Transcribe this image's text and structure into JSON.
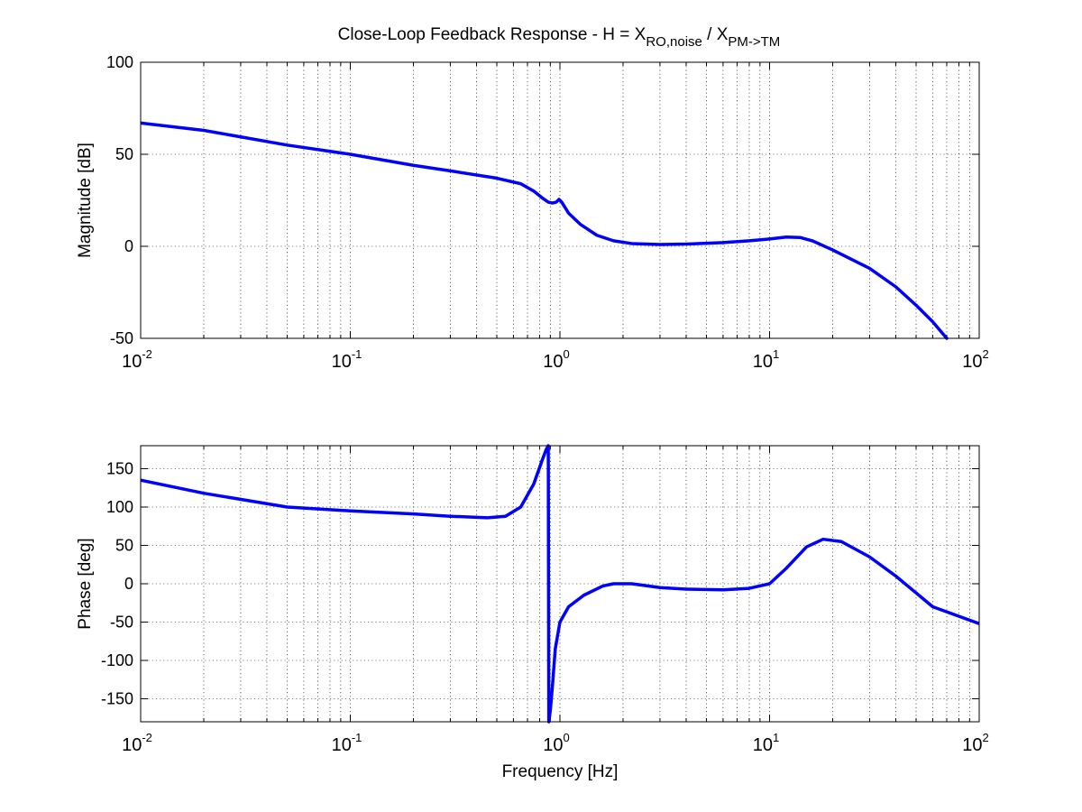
{
  "figure": {
    "title": {
      "main": "Close-Loop Feedback Response - H = X",
      "sub1": "RO,noise",
      "mid": " / X",
      "sub2": "PM->TM"
    }
  },
  "chart_data": [
    {
      "type": "line",
      "xscale": "log",
      "xlim": [
        0.01,
        100
      ],
      "ylim": [
        -50,
        100
      ],
      "grid": true,
      "xlabel": "",
      "ylabel": "Magnitude [dB]",
      "x_tick_labels": [
        {
          "base": "10",
          "exp": "-2"
        },
        {
          "base": "10",
          "exp": "-1"
        },
        {
          "base": "10",
          "exp": "0"
        },
        {
          "base": "10",
          "exp": "1"
        },
        {
          "base": "10",
          "exp": "2"
        }
      ],
      "y_ticks": [
        -50,
        0,
        50,
        100
      ],
      "y_tick_labels": [
        "-50",
        "0",
        "50",
        "100"
      ],
      "series": [
        {
          "color": "#0000ff",
          "x": [
            0.01,
            0.02,
            0.05,
            0.1,
            0.2,
            0.3,
            0.5,
            0.65,
            0.75,
            0.83,
            0.88,
            0.92,
            0.96,
            0.99,
            1.02,
            1.1,
            1.25,
            1.5,
            1.8,
            2.2,
            3,
            4,
            6,
            8,
            10,
            12,
            14,
            16,
            20,
            30,
            40,
            50,
            60,
            70
          ],
          "y": [
            67,
            63,
            55,
            50,
            44,
            41,
            37,
            34,
            30,
            26,
            24,
            23.5,
            24,
            25.5,
            24,
            18,
            12,
            6,
            3,
            1.5,
            1,
            1.2,
            2,
            3,
            4,
            5,
            4.8,
            3,
            -2,
            -12,
            -22,
            -32,
            -41,
            -50
          ]
        }
      ]
    },
    {
      "type": "line",
      "xscale": "log",
      "xlim": [
        0.01,
        100
      ],
      "ylim": [
        -180,
        180
      ],
      "grid": true,
      "xlabel": "Frequency [Hz]",
      "ylabel": "Phase [deg]",
      "x_tick_labels": [
        {
          "base": "10",
          "exp": "-2"
        },
        {
          "base": "10",
          "exp": "-1"
        },
        {
          "base": "10",
          "exp": "0"
        },
        {
          "base": "10",
          "exp": "1"
        },
        {
          "base": "10",
          "exp": "2"
        }
      ],
      "y_ticks": [
        -150,
        -100,
        -50,
        0,
        50,
        100,
        150
      ],
      "y_tick_labels": [
        "-150",
        "-100",
        "-50",
        "0",
        "50",
        "100",
        "150"
      ],
      "series": [
        {
          "color": "#0000ff",
          "x": [
            0.01,
            0.02,
            0.05,
            0.1,
            0.2,
            0.3,
            0.45,
            0.55,
            0.65,
            0.75,
            0.82,
            0.86,
            0.88,
            0.885,
            0.89,
            0.9,
            0.92,
            0.95,
            1.0,
            1.1,
            1.3,
            1.6,
            1.8,
            2.2,
            3,
            4,
            6,
            8,
            10,
            12,
            15,
            18,
            22,
            30,
            40,
            60,
            100
          ],
          "y": [
            135,
            118,
            100,
            95,
            91,
            88,
            86,
            88,
            100,
            130,
            160,
            175,
            180,
            -180,
            -175,
            -165,
            -135,
            -85,
            -50,
            -30,
            -15,
            -3,
            0,
            0,
            -5,
            -7,
            -8,
            -6,
            0,
            20,
            48,
            58,
            55,
            35,
            10,
            -30,
            -52
          ]
        }
      ]
    }
  ]
}
